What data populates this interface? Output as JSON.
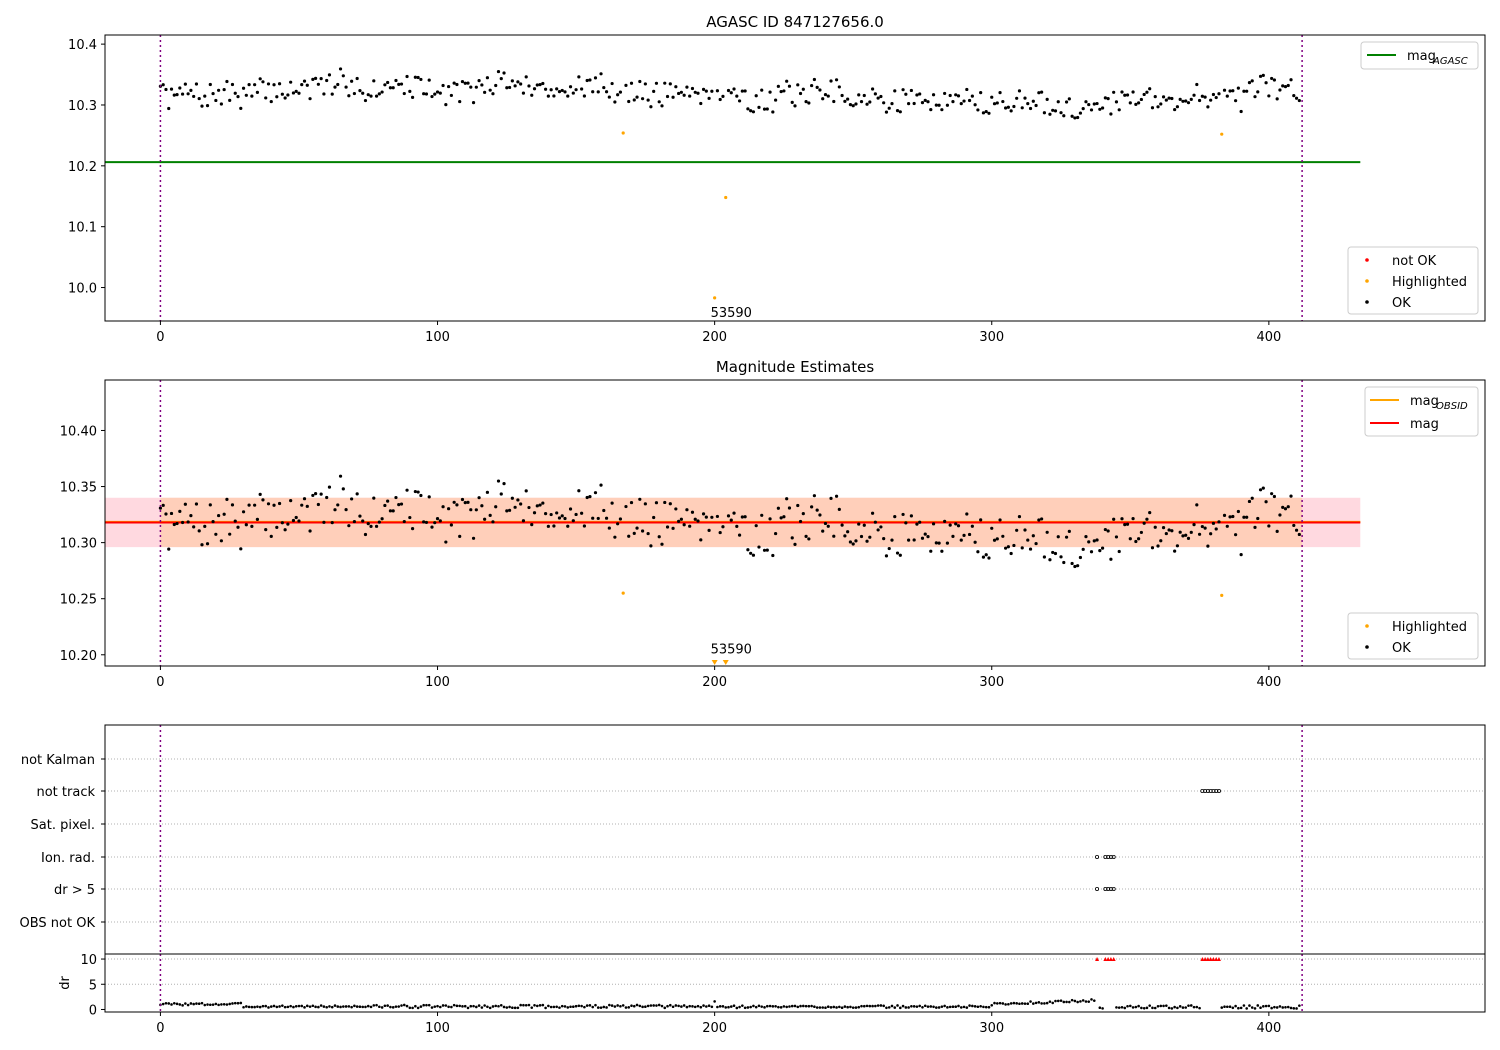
{
  "figure": {
    "background": "#ffffff"
  },
  "colors": {
    "ok": "#000000",
    "not_ok": "#ff0000",
    "highlighted": "#ffa500",
    "mag_agasc": "#008000",
    "mag_obsid": "#ffa500",
    "mag": "#ff0000",
    "band_mag": "#ffc0cb",
    "band_obsid": "#ffc8a0",
    "obs_boundary": "#800080",
    "grid": "#b0b0b0"
  },
  "chart_data": [
    {
      "type": "scatter",
      "title": "AGASC ID 847127656.0",
      "xlim": [
        -20,
        478
      ],
      "ylim": [
        9.945,
        10.415
      ],
      "x_ticks": [
        0,
        100,
        200,
        300,
        400
      ],
      "y_ticks": [
        10.0,
        10.1,
        10.2,
        10.3,
        10.4
      ],
      "y_tick_labels": [
        "10.0",
        "10.1",
        "10.2",
        "10.3",
        "10.4"
      ],
      "hlines": [
        {
          "name": "mag_AGASC",
          "y": 10.206,
          "x_range": [
            -20,
            433
          ],
          "color": "#008000"
        }
      ],
      "obs_boundaries": [
        0,
        412
      ],
      "obsid_annotation": {
        "text": "53590",
        "x": 206,
        "y": 9.96
      },
      "legend_top": [
        {
          "key": "mag_agasc",
          "label_main": "mag",
          "label_sub": "AGASC",
          "color": "#008000"
        }
      ],
      "legend_bottom": [
        {
          "key": "not_ok",
          "label": "not OK",
          "color": "#ff0000"
        },
        {
          "key": "highlighted",
          "label": "Highlighted",
          "color": "#ffa500"
        },
        {
          "key": "ok",
          "label": "OK",
          "color": "#000000"
        }
      ],
      "highlighted_points": [
        {
          "x": 167,
          "y": 10.254
        },
        {
          "x": 204,
          "y": 10.148
        },
        {
          "x": 200,
          "y": 9.983
        },
        {
          "x": 383,
          "y": 10.252
        }
      ],
      "ok_series": {
        "n": 412,
        "base": 10.318,
        "spread": 0.024,
        "seed": 7
      }
    },
    {
      "type": "scatter",
      "title": "Magnitude Estimates",
      "xlim": [
        -20,
        478
      ],
      "ylim": [
        10.19,
        10.445
      ],
      "x_ticks": [
        0,
        100,
        200,
        300,
        400
      ],
      "y_ticks": [
        10.2,
        10.25,
        10.3,
        10.35,
        10.4
      ],
      "y_tick_labels": [
        "10.20",
        "10.25",
        "10.30",
        "10.35",
        "10.40"
      ],
      "hlines": [
        {
          "name": "mag_OBSID",
          "y": 10.3185,
          "x_range": [
            -20,
            433
          ],
          "color": "#ffa500"
        },
        {
          "name": "mag",
          "y": 10.318,
          "x_range": [
            -20,
            433
          ],
          "color": "#ff0000"
        }
      ],
      "bands": [
        {
          "name": "mag-band",
          "y_range": [
            10.296,
            10.34
          ],
          "x_range": [
            -20,
            433
          ],
          "color": "#ffc0cb"
        },
        {
          "name": "obsid-band",
          "y_range": [
            10.296,
            10.34
          ],
          "x_range": [
            0,
            412
          ],
          "color": "#ffc8a0"
        }
      ],
      "obs_boundaries": [
        0,
        412
      ],
      "obsid_annotation": {
        "text": "53590",
        "x": 206,
        "y": 10.201
      },
      "legend_top": [
        {
          "key": "mag_obsid",
          "label_main": "mag",
          "label_sub": "OBSID",
          "color": "#ffa500"
        },
        {
          "key": "mag",
          "label_main": "mag",
          "label_sub": "",
          "color": "#ff0000"
        }
      ],
      "legend_bottom": [
        {
          "key": "highlighted",
          "label": "Highlighted",
          "color": "#ffa500"
        },
        {
          "key": "ok",
          "label": "OK",
          "color": "#000000"
        }
      ],
      "highlighted_points": [
        {
          "x": 167,
          "y": 10.255
        },
        {
          "x": 383,
          "y": 10.253
        }
      ],
      "off_scale_markers": [
        {
          "x": 200
        },
        {
          "x": 204
        }
      ],
      "ok_series": {
        "n": 412,
        "base": 10.318,
        "spread": 0.024,
        "seed": 7
      }
    },
    {
      "type": "scatter",
      "title": "",
      "xlim": [
        -20,
        478
      ],
      "categories": [
        "not Kalman",
        "not track",
        "Sat. pixel.",
        "Ion. rad.",
        "dr > 5",
        "OBS not OK"
      ],
      "flag_points": {
        "not track": [
          376,
          377,
          378,
          379,
          380,
          381,
          382
        ],
        "Ion. rad.": [
          338,
          341,
          342,
          343,
          344
        ],
        "dr > 5": [
          338,
          341,
          342,
          343,
          344
        ]
      },
      "obs_boundaries": [
        0,
        412
      ]
    },
    {
      "type": "scatter",
      "title": "",
      "ylabel": "dr",
      "xlim": [
        -20,
        478
      ],
      "ylim": [
        -0.5,
        11
      ],
      "x_ticks": [
        0,
        100,
        200,
        300,
        400
      ],
      "y_ticks": [
        0,
        5,
        10
      ],
      "y_tick_labels": [
        "0",
        "5",
        "10"
      ],
      "threshold_markers": [
        338,
        341,
        342,
        343,
        344,
        376,
        377,
        378,
        379,
        380,
        381,
        382
      ],
      "dr_series": {
        "n": 412,
        "seed": 3
      }
    }
  ]
}
